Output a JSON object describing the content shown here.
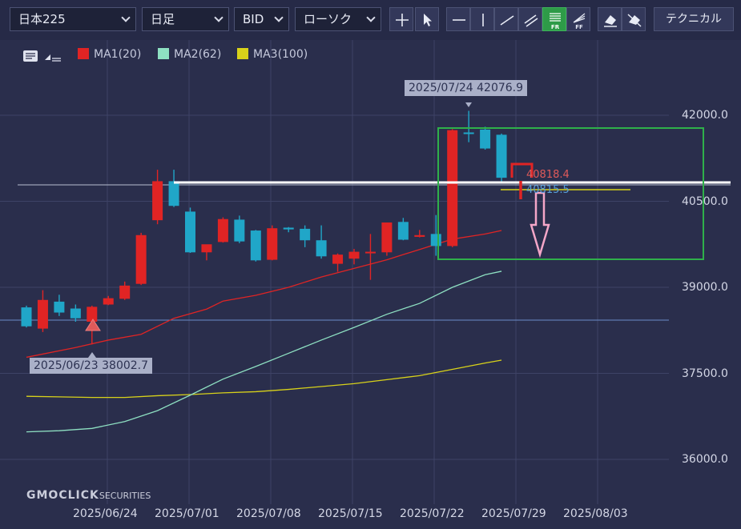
{
  "toolbar": {
    "symbol": "日本225",
    "interval": "日足",
    "side": "BID",
    "chart_style": "ローソク",
    "technical_label": "テクニカル",
    "tools": [
      {
        "name": "crosshair-button",
        "icon": "crosshair-icon"
      },
      {
        "name": "pointer-button",
        "icon": "pointer-icon"
      },
      {
        "name": "horizontal-line-button",
        "icon": "horizontal-line-icon"
      },
      {
        "name": "vertical-line-button",
        "icon": "vertical-line-icon"
      },
      {
        "name": "trend-line-button",
        "icon": "trend-line-icon"
      },
      {
        "name": "parallel-line-button",
        "icon": "parallel-line-icon"
      },
      {
        "name": "fibonacci-retracement-button",
        "icon": "fibonacci-retracement-icon",
        "label": "FR",
        "active": true
      },
      {
        "name": "fibonacci-fan-button",
        "icon": "fibonacci-fan-icon",
        "label": "FF"
      },
      {
        "name": "eraser-button",
        "icon": "eraser-icon"
      },
      {
        "name": "erase-all-button",
        "icon": "erase-all-icon"
      }
    ]
  },
  "legend": {
    "ma1": {
      "label": "MA1(20)",
      "color": "#e02424"
    },
    "ma2": {
      "label": "MA2(62)",
      "color": "#8ee0c2"
    },
    "ma3": {
      "label": "MA3(100)",
      "color": "#d8d21a"
    }
  },
  "annotations": {
    "high_label": "2025/07/24 42076.9",
    "low_label": "2025/06/23 38002.7",
    "price_red": "40818.4",
    "price_blue": "40815.5"
  },
  "logo": {
    "brand": "GMOCLICK",
    "suffix": "SECURITIES"
  },
  "chart_data": {
    "type": "candlestick",
    "y_ticks": [
      "42000.0",
      "40500.0",
      "39000.0",
      "37500.0",
      "36000.0"
    ],
    "x_ticks": [
      "2025/06/24",
      "2025/07/01",
      "2025/07/08",
      "2025/07/15",
      "2025/07/22",
      "2025/07/29",
      "2025/08/03"
    ],
    "colors": {
      "up": "#e02424",
      "down": "#20a6c8"
    },
    "candles": [
      {
        "o": 38650,
        "h": 38680,
        "l": 38300,
        "c": 38320
      },
      {
        "o": 38280,
        "h": 38950,
        "l": 38220,
        "c": 38780
      },
      {
        "o": 38750,
        "h": 38870,
        "l": 38500,
        "c": 38560
      },
      {
        "o": 38630,
        "h": 38700,
        "l": 38400,
        "c": 38460
      },
      {
        "o": 38400,
        "h": 38680,
        "l": 38003,
        "c": 38660
      },
      {
        "o": 38700,
        "h": 38850,
        "l": 38690,
        "c": 38810
      },
      {
        "o": 38800,
        "h": 39100,
        "l": 38780,
        "c": 39030
      },
      {
        "o": 39060,
        "h": 39950,
        "l": 39040,
        "c": 39910
      },
      {
        "o": 40170,
        "h": 41050,
        "l": 40100,
        "c": 40850
      },
      {
        "o": 40850,
        "h": 41050,
        "l": 40400,
        "c": 40420
      },
      {
        "o": 40320,
        "h": 40390,
        "l": 39600,
        "c": 39610
      },
      {
        "o": 39610,
        "h": 39740,
        "l": 39470,
        "c": 39750
      },
      {
        "o": 39790,
        "h": 40220,
        "l": 39780,
        "c": 40190
      },
      {
        "o": 40180,
        "h": 40250,
        "l": 39770,
        "c": 39800
      },
      {
        "o": 39990,
        "h": 40000,
        "l": 39450,
        "c": 39470
      },
      {
        "o": 39480,
        "h": 40080,
        "l": 39470,
        "c": 40030
      },
      {
        "o": 40040,
        "h": 40050,
        "l": 39960,
        "c": 40010
      },
      {
        "o": 40020,
        "h": 40080,
        "l": 39700,
        "c": 39820
      },
      {
        "o": 39820,
        "h": 40080,
        "l": 39500,
        "c": 39540
      },
      {
        "o": 39410,
        "h": 39590,
        "l": 39270,
        "c": 39570
      },
      {
        "o": 39500,
        "h": 39670,
        "l": 39400,
        "c": 39620
      },
      {
        "o": 39600,
        "h": 39930,
        "l": 39130,
        "c": 39620
      },
      {
        "o": 39610,
        "h": 40130,
        "l": 39550,
        "c": 40130
      },
      {
        "o": 40140,
        "h": 40210,
        "l": 39820,
        "c": 39830
      },
      {
        "o": 39880,
        "h": 40000,
        "l": 39870,
        "c": 39910
      },
      {
        "o": 39930,
        "h": 40260,
        "l": 39550,
        "c": 39720
      },
      {
        "o": 39720,
        "h": 41760,
        "l": 39700,
        "c": 41740
      },
      {
        "o": 41700,
        "h": 42077,
        "l": 41530,
        "c": 41680
      },
      {
        "o": 41750,
        "h": 41800,
        "l": 41400,
        "c": 41420
      },
      {
        "o": 41660,
        "h": 41680,
        "l": 40820,
        "c": 40910
      }
    ],
    "ma1": [
      [
        0,
        37780
      ],
      [
        3,
        37950
      ],
      [
        5,
        38080
      ],
      [
        7,
        38180
      ],
      [
        9,
        38460
      ],
      [
        11,
        38620
      ],
      [
        12,
        38760
      ],
      [
        14,
        38860
      ],
      [
        16,
        39000
      ],
      [
        18,
        39180
      ],
      [
        20,
        39330
      ],
      [
        22,
        39480
      ],
      [
        24,
        39660
      ],
      [
        26,
        39840
      ],
      [
        28,
        39930
      ],
      [
        29,
        39990
      ]
    ],
    "ma2": [
      [
        0,
        36480
      ],
      [
        2,
        36500
      ],
      [
        4,
        36540
      ],
      [
        6,
        36660
      ],
      [
        8,
        36850
      ],
      [
        10,
        37120
      ],
      [
        12,
        37400
      ],
      [
        14,
        37620
      ],
      [
        16,
        37850
      ],
      [
        18,
        38080
      ],
      [
        20,
        38300
      ],
      [
        22,
        38530
      ],
      [
        24,
        38720
      ],
      [
        26,
        39000
      ],
      [
        28,
        39220
      ],
      [
        29,
        39280
      ]
    ],
    "ma3": [
      [
        0,
        37100
      ],
      [
        2,
        37090
      ],
      [
        4,
        37080
      ],
      [
        6,
        37080
      ],
      [
        8,
        37110
      ],
      [
        10,
        37130
      ],
      [
        12,
        37160
      ],
      [
        14,
        37180
      ],
      [
        16,
        37220
      ],
      [
        18,
        37270
      ],
      [
        20,
        37320
      ],
      [
        22,
        37390
      ],
      [
        24,
        37460
      ],
      [
        26,
        37570
      ],
      [
        28,
        37680
      ],
      [
        29,
        37730
      ]
    ],
    "ylim": [
      35800,
      42600
    ],
    "grid": true,
    "legend": "top-left"
  }
}
